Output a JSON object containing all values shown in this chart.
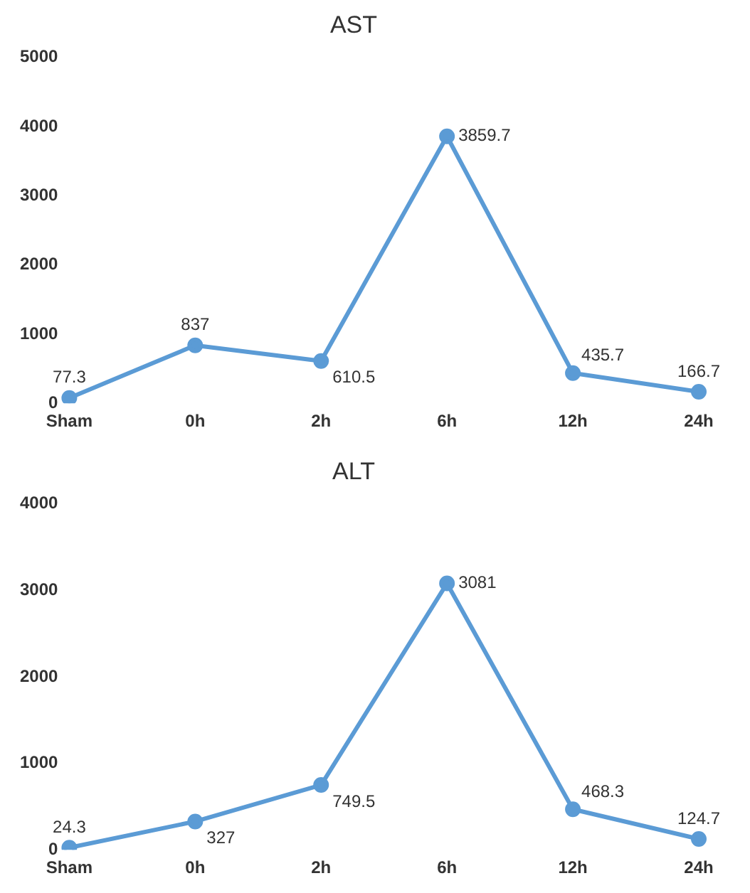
{
  "chart_data": [
    {
      "type": "line",
      "title": "AST",
      "categories": [
        "Sham",
        "0h",
        "2h",
        "6h",
        "12h",
        "24h"
      ],
      "series": [
        {
          "color": "#5b9bd5",
          "values": [
            77.3,
            837,
            610.5,
            3859.7,
            435.7,
            166.7
          ]
        }
      ],
      "ylim": [
        0,
        5000
      ],
      "yticks": [
        0,
        1000,
        2000,
        3000,
        4000,
        5000
      ],
      "grid": false,
      "legend": false,
      "marker": "circle",
      "line_style": "solid",
      "data_labels": true
    },
    {
      "type": "line",
      "title": "ALT",
      "categories": [
        "Sham",
        "0h",
        "2h",
        "6h",
        "12h",
        "24h"
      ],
      "series": [
        {
          "color": "#5b9bd5",
          "values": [
            24.3,
            327,
            749.5,
            3081,
            468.3,
            124.7
          ]
        }
      ],
      "ylim": [
        0,
        4000
      ],
      "yticks": [
        0,
        1000,
        2000,
        3000,
        4000
      ],
      "grid": false,
      "legend": false,
      "marker": "circle",
      "line_style": "solid",
      "data_labels": true
    }
  ]
}
